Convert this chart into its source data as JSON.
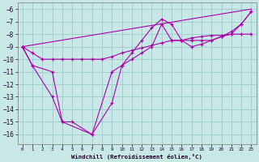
{
  "xlabel": "Windchill (Refroidissement éolien,°C)",
  "xlim": [
    -0.5,
    23.5
  ],
  "ylim": [
    -16.8,
    -5.5
  ],
  "yticks": [
    -6,
    -7,
    -8,
    -9,
    -10,
    -11,
    -12,
    -13,
    -14,
    -15,
    -16
  ],
  "xticks": [
    0,
    1,
    2,
    3,
    4,
    5,
    6,
    7,
    8,
    9,
    10,
    11,
    12,
    13,
    14,
    15,
    16,
    17,
    18,
    19,
    20,
    21,
    22,
    23
  ],
  "background_color": "#c8e8e8",
  "grid_color": "#a0c8c8",
  "line_color": "#aa00aa",
  "series": [
    {
      "x": [
        0,
        23
      ],
      "y": [
        -9,
        -6
      ],
      "marker": false
    },
    {
      "x": [
        0,
        1,
        2,
        3,
        4,
        5,
        6,
        7,
        8,
        9,
        10,
        11,
        12,
        13,
        14,
        15,
        16,
        17,
        18,
        19,
        20,
        21,
        22,
        23
      ],
      "y": [
        -9,
        -9.5,
        -10,
        -10,
        -10,
        -10,
        -10,
        -10,
        -10,
        -9.8,
        -9.5,
        -9.3,
        -9.1,
        -8.9,
        -8.7,
        -8.5,
        -8.5,
        -8.3,
        -8.2,
        -8.1,
        -8.1,
        -8.0,
        -8.0,
        -8.0
      ],
      "marker": true
    },
    {
      "x": [
        0,
        1,
        3,
        4,
        7,
        9,
        10,
        11,
        12,
        13,
        14,
        15,
        16,
        17,
        18,
        19,
        20,
        21,
        22,
        23
      ],
      "y": [
        -9,
        -10.5,
        -13,
        -15,
        -16,
        -13.5,
        -10.5,
        -9.5,
        -8.5,
        -7.5,
        -6.8,
        -7.2,
        -8.5,
        -8.5,
        -8.5,
        -8.5,
        -8.2,
        -8.0,
        -7.2,
        -6.2
      ],
      "marker": true
    },
    {
      "x": [
        0,
        1,
        3,
        4,
        5,
        7,
        9,
        10,
        11,
        12,
        13,
        14,
        15,
        16,
        17,
        18,
        19,
        20,
        21,
        22,
        23
      ],
      "y": [
        -9,
        -10.5,
        -11,
        -15,
        -15,
        -16,
        -11,
        -10.5,
        -10,
        -9.5,
        -9,
        -7.2,
        -8.5,
        -8.5,
        -9,
        -8.8,
        -8.5,
        -8.2,
        -7.8,
        -7.2,
        -6.2
      ],
      "marker": true
    }
  ]
}
